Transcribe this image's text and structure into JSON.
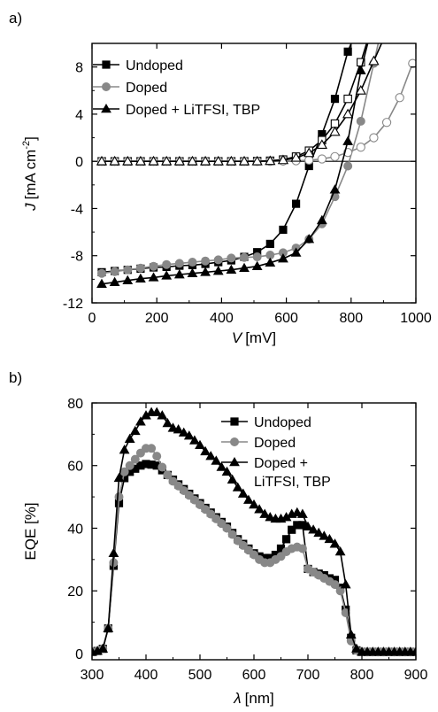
{
  "colors": {
    "undoped": "#000000",
    "doped": "#888888",
    "lithium": "#000000",
    "axis": "#000000"
  },
  "chart_data": [
    {
      "panel_label": "a)",
      "type": "line",
      "xlabel_italic": "V",
      "xlabel_unit": "[mV]",
      "ylabel_italic": "J",
      "ylabel_unit": "[mA cm",
      "ylabel_sup": "-2",
      "ylabel_close": "]",
      "xlim": [
        0,
        1000
      ],
      "ylim": [
        -12,
        10
      ],
      "xticks": [
        0,
        200,
        400,
        600,
        800,
        1000
      ],
      "yticks": [
        -12,
        -8,
        -4,
        0,
        4,
        8
      ],
      "zero_line": true,
      "legend_position": "top-left",
      "series": [
        {
          "name": "Undoped",
          "key": "undoped",
          "marker": "square",
          "light": true,
          "x": [
            30,
            70,
            110,
            150,
            190,
            230,
            270,
            310,
            350,
            390,
            430,
            470,
            510,
            550,
            590,
            630,
            670,
            710,
            750,
            790,
            830,
            840
          ],
          "y": [
            -9.4,
            -9.3,
            -9.2,
            -9.1,
            -9.0,
            -8.95,
            -8.85,
            -8.8,
            -8.7,
            -8.55,
            -8.4,
            -8.1,
            -7.7,
            -7.0,
            -5.8,
            -3.6,
            -0.4,
            2.3,
            5.3,
            9.3,
            12,
            12
          ]
        },
        {
          "name": "Undoped",
          "key": "undoped",
          "marker": "square-open",
          "x": [
            30,
            70,
            110,
            150,
            190,
            230,
            270,
            310,
            350,
            390,
            430,
            470,
            510,
            550,
            590,
            630,
            670,
            710,
            750,
            790,
            830,
            870,
            900
          ],
          "y": [
            0,
            0,
            0,
            0,
            0,
            0,
            0,
            0,
            0,
            0,
            0,
            0,
            0.02,
            0.05,
            0.15,
            0.4,
            0.9,
            1.8,
            3.2,
            5.3,
            8.4,
            12,
            12
          ]
        },
        {
          "name": "Doped",
          "key": "doped",
          "marker": "circle",
          "x": [
            30,
            70,
            110,
            150,
            190,
            230,
            270,
            310,
            350,
            390,
            430,
            470,
            510,
            550,
            590,
            630,
            670,
            710,
            750,
            790,
            830,
            870,
            900
          ],
          "y": [
            -9.5,
            -9.35,
            -9.2,
            -9.05,
            -8.9,
            -8.75,
            -8.65,
            -8.55,
            -8.45,
            -8.35,
            -8.2,
            -8.15,
            -8.1,
            -7.95,
            -7.75,
            -7.35,
            -6.6,
            -5.3,
            -3.0,
            -0.4,
            3.4,
            8.3,
            12
          ]
        },
        {
          "name": "Doped",
          "key": "doped",
          "marker": "circle-open",
          "x": [
            30,
            70,
            110,
            150,
            190,
            230,
            270,
            310,
            350,
            390,
            430,
            470,
            510,
            550,
            590,
            630,
            670,
            710,
            750,
            790,
            830,
            870,
            910,
            950,
            990
          ],
          "y": [
            0,
            0,
            0,
            0,
            0,
            0,
            0,
            0,
            0,
            0,
            0,
            0,
            0,
            0,
            0.02,
            0.05,
            0.1,
            0.2,
            0.4,
            0.75,
            1.2,
            2.0,
            3.3,
            5.4,
            8.3
          ]
        },
        {
          "name": "Doped + LiTFSI, TBP",
          "key": "lithium",
          "marker": "triangle",
          "x": [
            30,
            70,
            110,
            150,
            190,
            230,
            270,
            310,
            350,
            390,
            430,
            470,
            510,
            550,
            590,
            630,
            670,
            710,
            750,
            790,
            830,
            870
          ],
          "y": [
            -10.4,
            -10.25,
            -10.1,
            -9.95,
            -9.85,
            -9.7,
            -9.6,
            -9.5,
            -9.4,
            -9.3,
            -9.2,
            -9.05,
            -8.9,
            -8.6,
            -8.25,
            -7.75,
            -6.6,
            -5.0,
            -2.4,
            1.7,
            7.7,
            12
          ]
        },
        {
          "name": "Doped + LiTFSI, TBP",
          "key": "lithium",
          "marker": "triangle-open",
          "x": [
            30,
            70,
            110,
            150,
            190,
            230,
            270,
            310,
            350,
            390,
            430,
            470,
            510,
            550,
            590,
            630,
            670,
            710,
            750,
            790,
            830,
            870,
            910,
            950
          ],
          "y": [
            0,
            0,
            0,
            0,
            0,
            0,
            0,
            0,
            0,
            0,
            0,
            0,
            0,
            0.03,
            0.1,
            0.3,
            0.7,
            1.4,
            2.5,
            4.0,
            6.0,
            8.5,
            11,
            12
          ]
        }
      ],
      "legend": [
        {
          "label": "Undoped",
          "key": "undoped",
          "marker": "square"
        },
        {
          "label": "Doped",
          "key": "doped",
          "marker": "circle"
        },
        {
          "label": "Doped + LiTFSI, TBP",
          "key": "lithium",
          "marker": "triangle"
        }
      ]
    },
    {
      "panel_label": "b)",
      "type": "line",
      "xlabel_italic": "λ",
      "xlabel_unit": "[nm]",
      "ylabel": "EQE [%]",
      "xlim": [
        300,
        900
      ],
      "ylim": [
        -2,
        80
      ],
      "xticks": [
        300,
        400,
        500,
        600,
        700,
        800,
        900
      ],
      "yticks": [
        0,
        20,
        40,
        60,
        80
      ],
      "legend_position": "top-right",
      "series": [
        {
          "name": "Undoped",
          "key": "undoped",
          "marker": "square",
          "x": [
            300,
            310,
            320,
            330,
            340,
            350,
            360,
            370,
            380,
            390,
            400,
            410,
            420,
            430,
            440,
            450,
            460,
            470,
            480,
            490,
            500,
            510,
            520,
            530,
            540,
            550,
            560,
            570,
            580,
            590,
            600,
            610,
            620,
            630,
            640,
            650,
            660,
            670,
            680,
            690,
            700,
            710,
            720,
            730,
            740,
            750,
            760,
            770,
            780,
            790,
            800,
            810,
            820,
            830,
            840,
            850,
            860,
            870,
            880,
            890,
            900
          ],
          "y": [
            0.5,
            0.8,
            1.5,
            8,
            28,
            48,
            56,
            58,
            59,
            60,
            60.5,
            60.3,
            60,
            58.5,
            57,
            55.5,
            54,
            52.5,
            51,
            49.5,
            48,
            46.5,
            45,
            43.5,
            42,
            40.5,
            38.5,
            36.5,
            35,
            33.5,
            32,
            31,
            30.5,
            30.5,
            31.5,
            33.5,
            36.5,
            39.5,
            41,
            41,
            27,
            26,
            25.5,
            25,
            24,
            23.5,
            21,
            14,
            5,
            1,
            0.5,
            0.5,
            0.5,
            0.5,
            0.5,
            0.5,
            0.5,
            0.5,
            0.5,
            0.5,
            0.5
          ]
        },
        {
          "name": "Doped",
          "key": "doped",
          "marker": "circle",
          "x": [
            300,
            310,
            320,
            330,
            340,
            350,
            360,
            370,
            380,
            390,
            400,
            410,
            420,
            430,
            440,
            450,
            460,
            470,
            480,
            490,
            500,
            510,
            520,
            530,
            540,
            550,
            560,
            570,
            580,
            590,
            600,
            610,
            620,
            630,
            640,
            650,
            660,
            670,
            680,
            690,
            700,
            710,
            720,
            730,
            740,
            750,
            760,
            770,
            780,
            790,
            800,
            810,
            820,
            830,
            840,
            850,
            860,
            870,
            880,
            890,
            900
          ],
          "y": [
            0.5,
            0.8,
            1.5,
            8,
            29,
            50,
            58,
            60,
            62,
            64,
            65.5,
            65.5,
            63,
            59.5,
            57,
            55,
            53.5,
            52,
            50.5,
            49,
            47.5,
            46,
            44.5,
            43,
            41.5,
            40,
            38,
            36,
            34.5,
            33,
            31.5,
            30,
            29,
            29,
            30,
            31,
            32.5,
            33.5,
            34,
            33.5,
            27,
            26,
            25,
            24,
            23,
            22,
            20,
            13,
            4,
            1,
            0.5,
            0.5,
            0.5,
            0.5,
            0.5,
            0.5,
            0.5,
            0.5,
            0.5,
            0.5,
            0.5
          ]
        },
        {
          "name": "Doped + LiTFSI, TBP",
          "key": "lithium",
          "marker": "triangle",
          "x": [
            300,
            310,
            320,
            330,
            340,
            350,
            360,
            370,
            380,
            390,
            400,
            410,
            420,
            430,
            440,
            450,
            460,
            470,
            480,
            490,
            500,
            510,
            520,
            530,
            540,
            550,
            560,
            570,
            580,
            590,
            600,
            610,
            620,
            630,
            640,
            650,
            660,
            670,
            680,
            690,
            700,
            710,
            720,
            730,
            740,
            750,
            760,
            770,
            780,
            790,
            800,
            810,
            820,
            830,
            840,
            850,
            860,
            870,
            880,
            890,
            900
          ],
          "y": [
            0.5,
            0.8,
            1.5,
            8,
            32,
            56,
            65,
            68.5,
            71,
            74,
            76,
            77,
            77,
            76,
            73.5,
            72,
            71.5,
            70.5,
            69.5,
            68,
            66.5,
            64.5,
            63,
            61.5,
            59.5,
            58,
            55.5,
            53,
            51,
            49,
            47.5,
            46,
            44.5,
            43.5,
            43,
            43,
            43.5,
            44.5,
            45,
            44.5,
            40.5,
            39.5,
            38.5,
            37.5,
            36.5,
            35,
            32.5,
            22,
            6,
            1.5,
            0.5,
            0.5,
            0.5,
            0.5,
            0.5,
            0.5,
            0.5,
            0.5,
            0.5,
            0.5,
            0.5
          ]
        }
      ],
      "legend": [
        {
          "label": "Undoped",
          "key": "undoped",
          "marker": "square"
        },
        {
          "label": "Doped",
          "key": "doped",
          "marker": "circle"
        },
        {
          "label": "Doped +",
          "label2": "LiTFSI, TBP",
          "key": "lithium",
          "marker": "triangle"
        }
      ]
    }
  ]
}
